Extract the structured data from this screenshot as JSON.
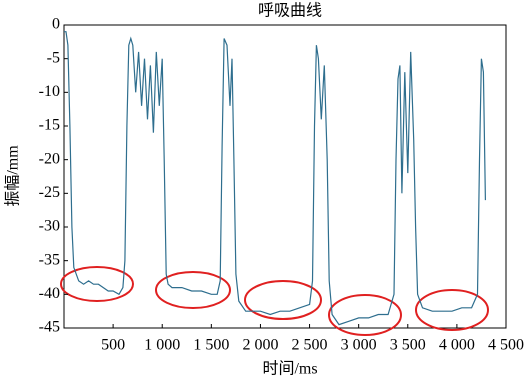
{
  "chart_data": {
    "type": "line",
    "title": "呼吸曲线",
    "x_label": "时间/ms",
    "y_label": "振幅/mm",
    "x": [
      0,
      20,
      40,
      60,
      80,
      100,
      150,
      200,
      250,
      300,
      350,
      400,
      450,
      500,
      560,
      600,
      620,
      640,
      660,
      680,
      700,
      730,
      760,
      790,
      820,
      850,
      880,
      910,
      940,
      970,
      1000,
      1020,
      1040,
      1060,
      1100,
      1200,
      1300,
      1400,
      1500,
      1560,
      1590,
      1610,
      1630,
      1660,
      1690,
      1710,
      1730,
      1750,
      1780,
      1850,
      2000,
      2100,
      2200,
      2300,
      2400,
      2500,
      2530,
      2550,
      2570,
      2590,
      2620,
      2650,
      2680,
      2700,
      2730,
      2800,
      2900,
      3000,
      3100,
      3200,
      3300,
      3360,
      3380,
      3400,
      3420,
      3440,
      3470,
      3500,
      3530,
      3560,
      3580,
      3600,
      3650,
      3750,
      3850,
      3950,
      4050,
      4150,
      4210,
      4230,
      4250,
      4270,
      4290
    ],
    "series": [
      {
        "color": "#2e6e8e",
        "values": [
          -1,
          -1,
          -3,
          -15,
          -30,
          -36,
          -38,
          -38.5,
          -38,
          -38.5,
          -38.5,
          -39,
          -39.5,
          -39.5,
          -40,
          -39,
          -35,
          -15,
          -3,
          -2,
          -3,
          -10,
          -4,
          -12,
          -5,
          -14,
          -6,
          -16,
          -4,
          -12,
          -5,
          -20,
          -37,
          -38.5,
          -39,
          -39,
          -39.5,
          -39.5,
          -40,
          -40,
          -38,
          -18,
          -2,
          -3,
          -12,
          -5,
          -20,
          -37,
          -41,
          -42.5,
          -42.5,
          -43,
          -42.5,
          -42.5,
          -42,
          -41.5,
          -38,
          -15,
          -3,
          -5,
          -14,
          -6,
          -20,
          -38,
          -43,
          -44.5,
          -44,
          -43.5,
          -43.5,
          -43,
          -43,
          -40,
          -20,
          -8,
          -6,
          -25,
          -7,
          -22,
          -4,
          -17,
          -30,
          -40,
          -42,
          -42.5,
          -42.5,
          -42.5,
          -42,
          -42,
          -40,
          -20,
          -5,
          -7,
          -26
        ]
      }
    ],
    "xlim": [
      0,
      4500
    ],
    "ylim": [
      -45,
      0
    ],
    "xticks": [
      {
        "value": 500,
        "label": "500"
      },
      {
        "value": 1000,
        "label": "1 000"
      },
      {
        "value": 1500,
        "label": "1 500"
      },
      {
        "value": 2000,
        "label": "2 000"
      },
      {
        "value": 2500,
        "label": "2 500"
      },
      {
        "value": 3000,
        "label": "3 000"
      },
      {
        "value": 3500,
        "label": "3 500"
      },
      {
        "value": 4000,
        "label": "4 000"
      },
      {
        "value": 4500,
        "label": "4 500"
      }
    ],
    "yticks": [
      0,
      -5,
      -10,
      -15,
      -20,
      -25,
      -30,
      -35,
      -40,
      -45
    ]
  }
}
